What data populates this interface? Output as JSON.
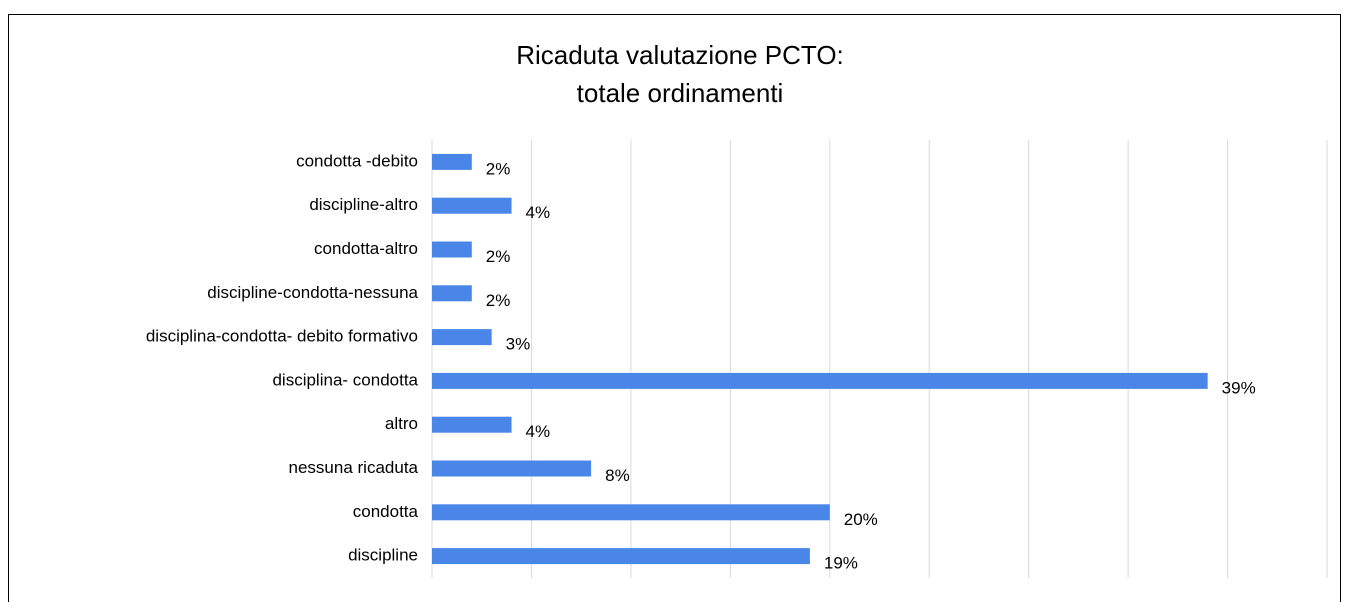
{
  "chart_data": {
    "type": "barh",
    "title": "Ricaduta valutazione PCTO:",
    "subtitle": "totale ordinamenti",
    "categories": [
      "condotta -debito",
      "discipline-altro",
      "condotta-altro",
      "discipline-condotta-nessuna",
      "disciplina-condotta- debito formativo",
      "disciplina- condotta",
      "altro",
      "nessuna ricaduta",
      "condotta",
      "discipline"
    ],
    "values": [
      2,
      4,
      2,
      2,
      3,
      39,
      4,
      8,
      20,
      19
    ],
    "value_labels": [
      "2%",
      "4%",
      "2%",
      "2%",
      "3%",
      "39%",
      "4%",
      "8%",
      "20%",
      "19%"
    ],
    "color": "#4a86e8",
    "xlim": [
      0,
      45
    ],
    "xticks": [
      0,
      5,
      10,
      15,
      20,
      25,
      30,
      35,
      40,
      45
    ],
    "grid": true
  }
}
